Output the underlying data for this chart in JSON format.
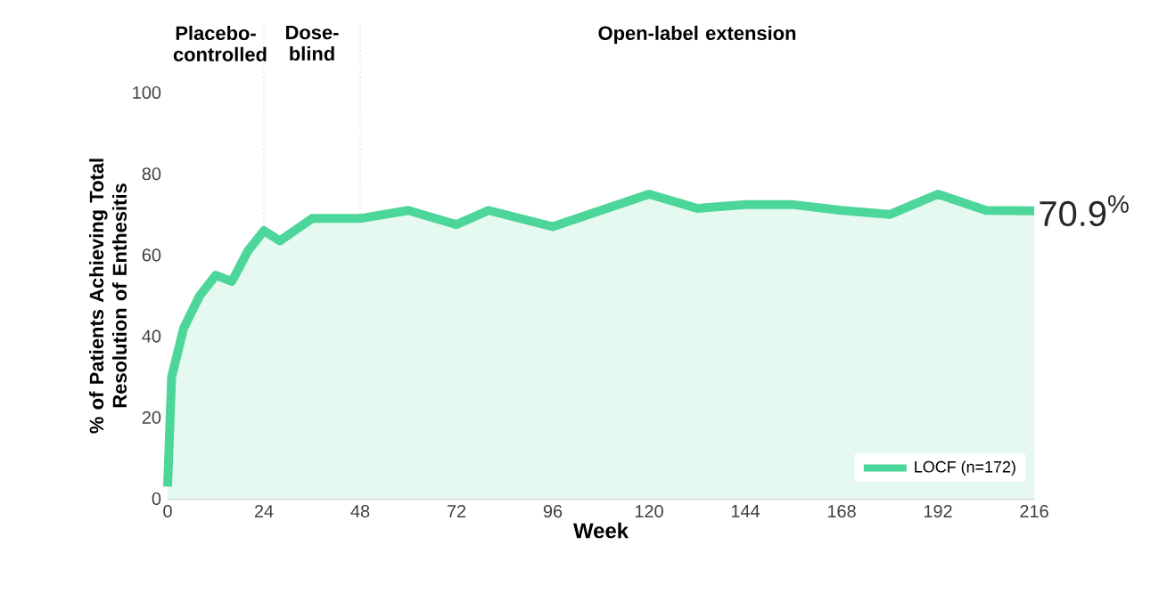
{
  "chart_data": {
    "type": "area",
    "xlabel": "Week",
    "ylabel": "% of Patients Achieving Total Resolution of Enthesitis",
    "x": [
      0,
      1,
      4,
      8,
      12,
      16,
      20,
      24,
      28,
      36,
      48,
      60,
      72,
      80,
      96,
      108,
      120,
      132,
      144,
      156,
      168,
      180,
      192,
      204,
      216
    ],
    "series": [
      {
        "name": "LOCF (n=172)",
        "color": "#4cd69a",
        "values": [
          3,
          30,
          42,
          50,
          55,
          53.5,
          61,
          66,
          63.5,
          69,
          69,
          71,
          67.5,
          71,
          67,
          71,
          75,
          71.5,
          72.4,
          72.4,
          71,
          70,
          75,
          71,
          70.9
        ],
        "value_labels": [
          null,
          null,
          null,
          null,
          null,
          null,
          null,
          null,
          null,
          null,
          null,
          null,
          null,
          null,
          null,
          null,
          null,
          null,
          null,
          null,
          null,
          null,
          null,
          null,
          "70.9$^{%}$"
        ]
      }
    ],
    "xlim": [
      0,
      216
    ],
    "xticks": [
      0,
      24,
      48,
      72,
      96,
      120,
      144,
      168,
      192,
      216
    ],
    "ylim": [
      0,
      100
    ],
    "yticks": [
      0,
      20,
      40,
      60,
      80,
      100
    ],
    "ref_lines": [
      {
        "axis": "x",
        "value": 24,
        "line_style": "dotted"
      },
      {
        "axis": "x",
        "value": 48,
        "line_style": "dotted"
      }
    ],
    "annotations": [
      "Placebo-controlled",
      "Dose-blind",
      "Open-label extension"
    ],
    "legend": "bottom right",
    "grid": false
  }
}
